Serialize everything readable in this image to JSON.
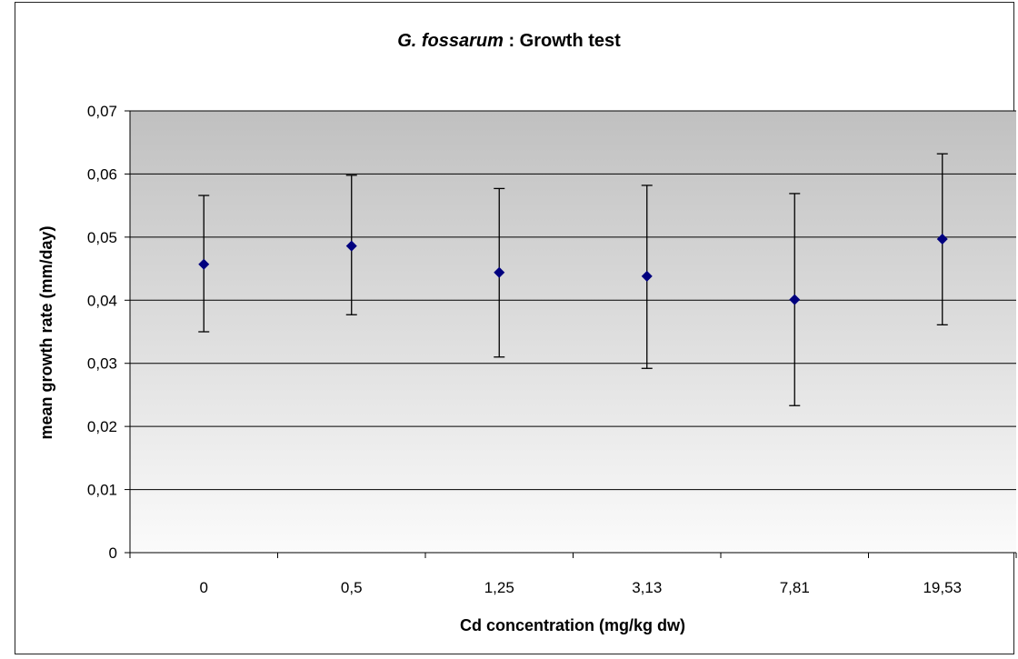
{
  "chart_data": {
    "type": "scatter",
    "title_italic": "G. fossarum",
    "title_rest": " : Growth test",
    "xlabel": "Cd concentration (mg/kg dw)",
    "ylabel": "mean growth rate (mm/day)",
    "categories": [
      "0",
      "0,5",
      "1,25",
      "3,13",
      "7,81",
      "19,53"
    ],
    "y_ticks": [
      "0",
      "0,01",
      "0,02",
      "0,03",
      "0,04",
      "0,05",
      "0,06",
      "0,07"
    ],
    "ylim": [
      0,
      0.07
    ],
    "grid": true,
    "values": [
      0.0457,
      0.0486,
      0.0444,
      0.0438,
      0.0401,
      0.0497
    ],
    "error_low": [
      0.035,
      0.0377,
      0.031,
      0.0292,
      0.0233,
      0.0361
    ],
    "error_high": [
      0.0566,
      0.0598,
      0.0577,
      0.0582,
      0.0569,
      0.0632
    ],
    "marker_color": "#00007f",
    "plot_bg_top": "#c0c0c0",
    "plot_bg_bottom": "#fbfbfb"
  }
}
